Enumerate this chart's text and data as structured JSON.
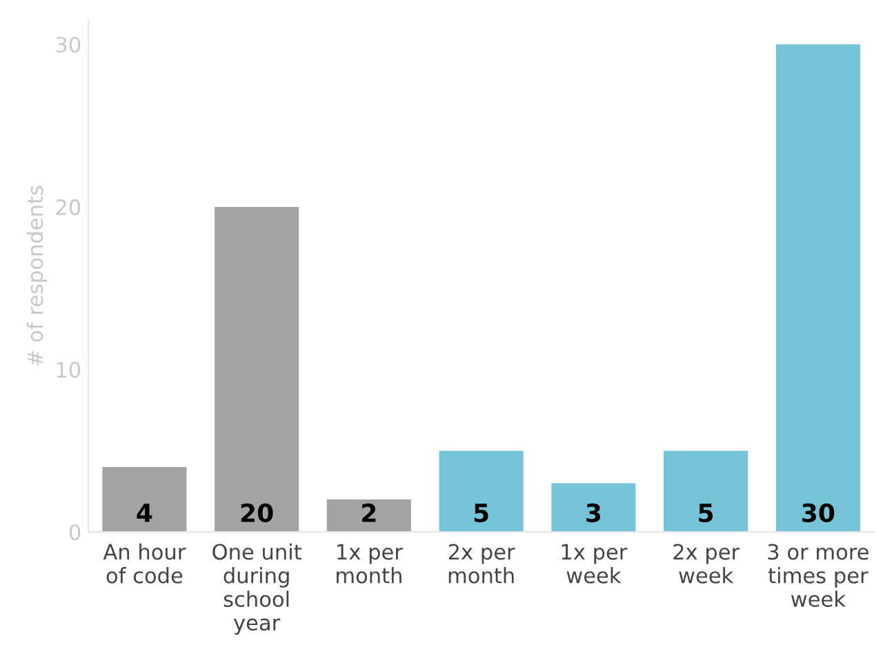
{
  "chart_data": {
    "type": "bar",
    "ylabel": "# of respondents",
    "categories": [
      "An hour\nof code",
      "One unit\nduring\nschool\nyear",
      "1x per\nmonth",
      "2x per\nmonth",
      "1x per\nweek",
      "2x per\nweek",
      "3 or more\ntimes per\nweek"
    ],
    "values": [
      4,
      20,
      2,
      5,
      3,
      5,
      30
    ],
    "colors": [
      "#a3a3a3",
      "#a3a3a3",
      "#a3a3a3",
      "#74c3d6",
      "#74c3d6",
      "#74c3d6",
      "#74c3d6"
    ],
    "ylim": [
      0,
      31.5
    ],
    "yticks": [
      0,
      10,
      20,
      30
    ],
    "grid": false,
    "data_labels": true
  }
}
